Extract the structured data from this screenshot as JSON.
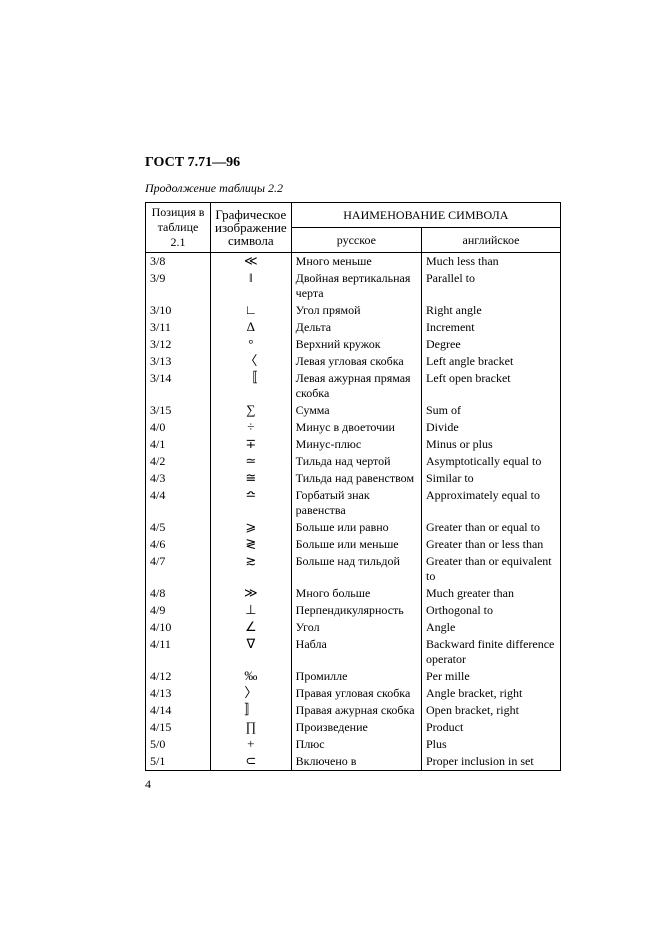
{
  "doc": {
    "header": "ГОСТ 7.71—96",
    "caption": "Продолжение таблицы 2.2",
    "page_number": "4"
  },
  "table": {
    "head_pos": "Позиция в таблице 2.1",
    "head_sym": "Графическое изображение символа",
    "head_name": "НАИМЕНОВАНИЕ СИМВОЛА",
    "head_ru": "русское",
    "head_en": "английское",
    "rows": [
      {
        "pos": "3/8",
        "sym": "≪",
        "ru": "Много меньше",
        "en": "Much less than"
      },
      {
        "pos": "3/9",
        "sym": "‖",
        "ru": "Двойная вертикальная черта",
        "en": "Parallel to"
      },
      {
        "pos": "3/10",
        "sym": "∟",
        "ru": "Угол прямой",
        "en": "Right angle"
      },
      {
        "pos": "3/11",
        "sym": "Δ",
        "ru": "Дельта",
        "en": "Increment"
      },
      {
        "pos": "3/12",
        "sym": "°",
        "ru": "Верхний кружок",
        "en": "Degree"
      },
      {
        "pos": "3/13",
        "sym": "〈",
        "ru": "Левая угловая скобка",
        "en": "Left angle bracket"
      },
      {
        "pos": "3/14",
        "sym": "〚",
        "ru": "Левая ажурная прямая скобка",
        "en": "Left open bracket"
      },
      {
        "pos": "3/15",
        "sym": "∑",
        "ru": "Сумма",
        "en": "Sum of"
      },
      {
        "pos": "4/0",
        "sym": "÷",
        "ru": "Минус в двоеточии",
        "en": "Divide"
      },
      {
        "pos": "4/1",
        "sym": "∓",
        "ru": "Минус-плюс",
        "en": "Minus or plus"
      },
      {
        "pos": "4/2",
        "sym": "≃",
        "ru": "Тильда над чертой",
        "en": "Asymptotically equal to"
      },
      {
        "pos": "4/3",
        "sym": "≅",
        "ru": "Тильда над равенством",
        "en": "Similar to"
      },
      {
        "pos": "4/4",
        "sym": "≏",
        "ru": "Горбатый знак равенства",
        "en": "Approximately equal to"
      },
      {
        "pos": "4/5",
        "sym": "⩾",
        "ru": "Больше или равно",
        "en": "Greater than or equal to"
      },
      {
        "pos": "4/6",
        "sym": "≷",
        "ru": "Больше или меньше",
        "en": "Greater than or less than"
      },
      {
        "pos": "4/7",
        "sym": "≳",
        "ru": "Больше над тильдой",
        "en": "Greater than or equivalent to"
      },
      {
        "pos": "4/8",
        "sym": "≫",
        "ru": "Много больше",
        "en": "Much greater than"
      },
      {
        "pos": "4/9",
        "sym": "⊥",
        "ru": "Перпендикулярность",
        "en": "Orthogonal to"
      },
      {
        "pos": "4/10",
        "sym": "∠",
        "ru": "Угол",
        "en": "Angle"
      },
      {
        "pos": "4/11",
        "sym": "∇",
        "ru": "Набла",
        "en": "Backward finite difference operator"
      },
      {
        "pos": "4/12",
        "sym": "‰",
        "ru": "Промилле",
        "en": "Per mille"
      },
      {
        "pos": "4/13",
        "sym": "〉",
        "ru": "Правая угловая скобка",
        "en": "Angle bracket, right"
      },
      {
        "pos": "4/14",
        "sym": "〛",
        "ru": "Правая ажурная скобка",
        "en": "Open bracket, right"
      },
      {
        "pos": "4/15",
        "sym": "∏",
        "ru": "Произведение",
        "en": "Product"
      },
      {
        "pos": "5/0",
        "sym": "+",
        "ru": "Плюс",
        "en": "Plus"
      },
      {
        "pos": "5/1",
        "sym": "⊂",
        "ru": "Включено в",
        "en": "Proper inclusion in set"
      }
    ]
  }
}
